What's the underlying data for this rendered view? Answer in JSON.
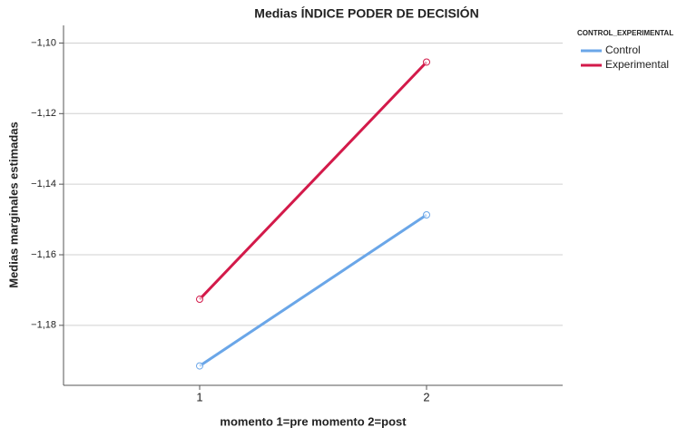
{
  "chart_data": {
    "type": "line",
    "title": "Medias ÍNDICE PODER DE DECISIÓN",
    "x_label": "momento 1=pre  momento 2=post",
    "y_label": "Medias marginales estimadas",
    "legend_title": "CONTROL_EXPERIMENTAL",
    "x": [
      1,
      2
    ],
    "xlim": [
      0.4,
      2.6
    ],
    "xticks": [
      1,
      2
    ],
    "ylim": [
      -1.197,
      -1.095
    ],
    "yticks": [
      {
        "value": -1.1,
        "label": "−1,10"
      },
      {
        "value": -1.12,
        "label": "−1,12"
      },
      {
        "value": -1.14,
        "label": "−1,14"
      },
      {
        "value": -1.16,
        "label": "−1,16"
      },
      {
        "value": -1.18,
        "label": "−1,18"
      }
    ],
    "grid": true,
    "legend": "top-right",
    "series": [
      {
        "name": "Control",
        "color": "#6aa6e8",
        "values": [
          -1.1915,
          -1.1487
        ]
      },
      {
        "name": "Experimental",
        "color": "#d31a4a",
        "values": [
          -1.1726,
          -1.1054
        ]
      }
    ]
  }
}
